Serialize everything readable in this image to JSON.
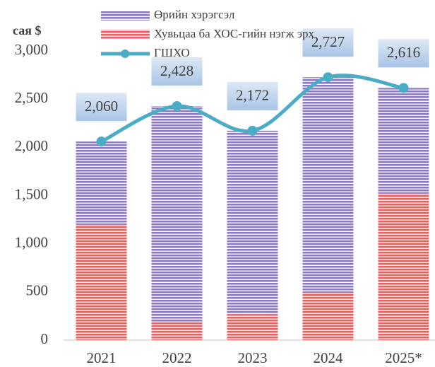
{
  "chart_data": {
    "type": "bar",
    "y_label": "сая $",
    "categories": [
      "2021",
      "2022",
      "2023",
      "2024",
      "2025*"
    ],
    "series": [
      {
        "name": "Хувьцаа ба ХОС-гийн нэгж эрх",
        "color": "#e06666",
        "values": [
          1200,
          190,
          270,
          500,
          1520
        ]
      },
      {
        "name": "Өрийн хэрэгсэл",
        "color": "#8e7cc3",
        "values": [
          860,
          2238,
          1902,
          2227,
          1096
        ]
      },
      {
        "name": "ГШХО",
        "type": "line",
        "color": "#4bacc6",
        "values": [
          2060,
          2428,
          2172,
          2727,
          2616
        ],
        "value_labels": [
          "2,060",
          "2,428",
          "2,172",
          "2,727",
          "2,616"
        ]
      }
    ],
    "ylim": [
      0,
      3000
    ],
    "yticks": [
      0,
      500,
      {
        "value": 1000,
        "label": "1,000"
      },
      {
        "value": 1500,
        "label": "1,500"
      },
      {
        "value": 2000,
        "label": "2,000"
      },
      {
        "value": 2500,
        "label": "2,500"
      },
      {
        "value": 3000,
        "label": "3,000"
      }
    ]
  }
}
